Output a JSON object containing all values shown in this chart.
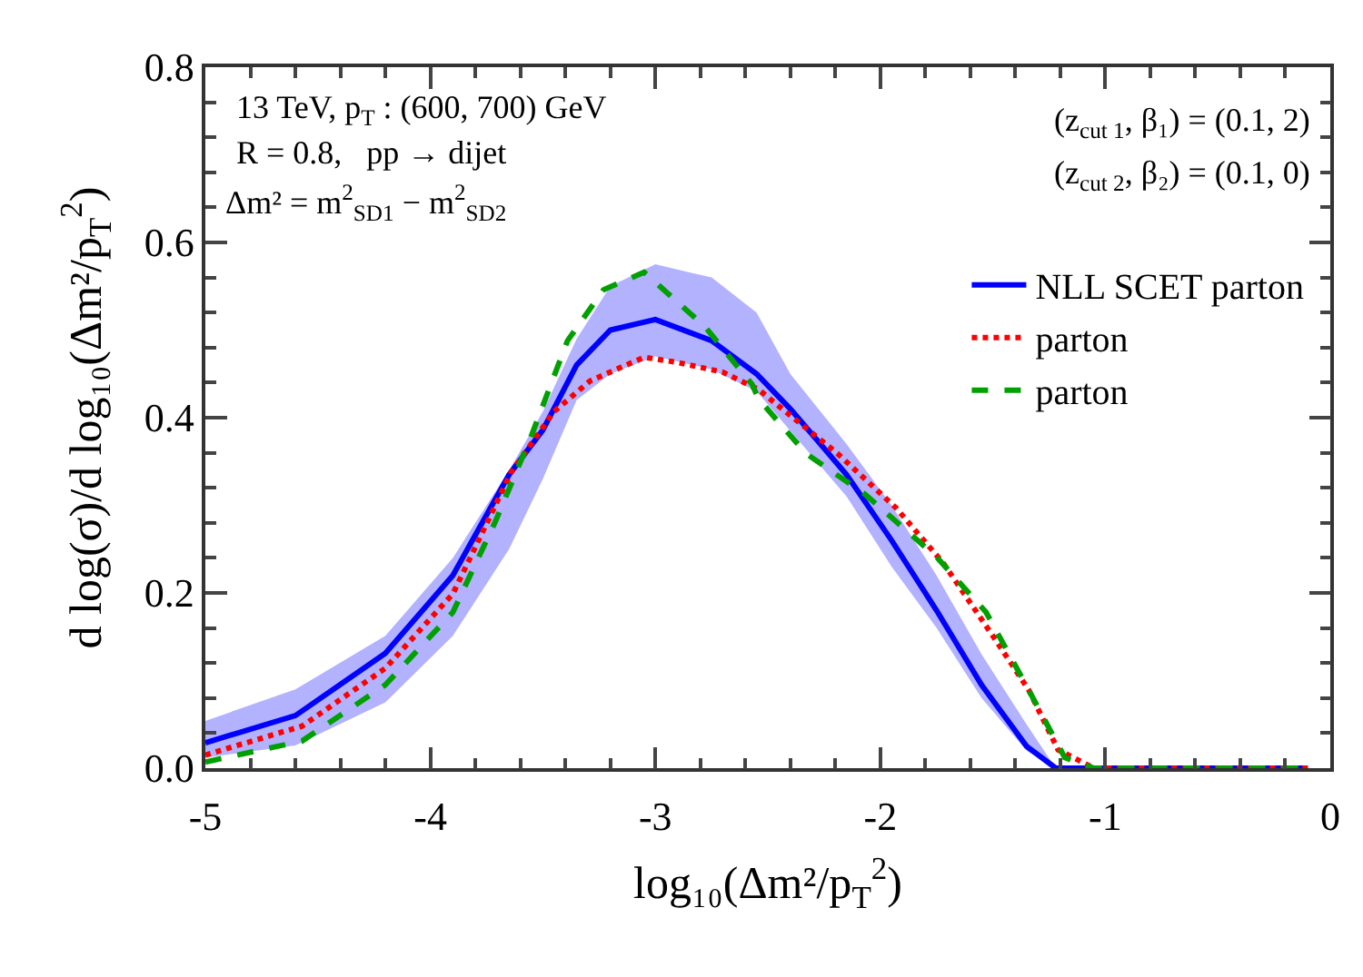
{
  "chart_data": {
    "type": "line",
    "xlabel": "log₁₀(Δm²/p$_{T}$$^{2}$)",
    "ylabel": "d log(σ)/d log₁₀(Δm²/p$_{T}$$^{2}$)",
    "annotations": [
      "13 TeV, p$_{T}$ : (600, 700) GeV",
      "R = 0.8,   pp → dijet",
      "Δm² = m$^{2}$$_{SD1}$ − m$^{2}$$_{SD2}$",
      "(z$_{cut 1}$, β₁) = (0.1, 2)",
      "(z$_{cut 2}$, β₂) = (0.1, 0)"
    ],
    "xlim": [
      -5,
      0
    ],
    "xticks": [
      -5,
      {
        "value": -4.8,
        "label": null
      },
      {
        "value": -4.6,
        "label": null
      },
      {
        "value": -4.4,
        "label": null
      },
      {
        "value": -4.2,
        "label": null
      },
      -4,
      {
        "value": -3.8,
        "label": null
      },
      {
        "value": -3.6,
        "label": null
      },
      {
        "value": -3.4,
        "label": null
      },
      {
        "value": -3.2,
        "label": null
      },
      -3,
      {
        "value": -2.8,
        "label": null
      },
      {
        "value": -2.6,
        "label": null
      },
      {
        "value": -2.4,
        "label": null
      },
      {
        "value": -2.2,
        "label": null
      },
      -2,
      {
        "value": -1.8,
        "label": null
      },
      {
        "value": -1.6,
        "label": null
      },
      {
        "value": -1.4,
        "label": null
      },
      {
        "value": -1.2,
        "label": null
      },
      -1,
      {
        "value": -0.8,
        "label": null
      },
      {
        "value": -0.6,
        "label": null
      },
      {
        "value": -0.4,
        "label": null
      },
      {
        "value": -0.2,
        "label": null
      },
      0
    ],
    "ylim": [
      0,
      0.8
    ],
    "yticks": [
      {
        "value": 0,
        "label": "0.0"
      },
      {
        "value": 0.04,
        "label": null
      },
      {
        "value": 0.08,
        "label": null
      },
      {
        "value": 0.12,
        "label": null
      },
      {
        "value": 0.16,
        "label": null
      },
      0.2,
      {
        "value": 0.24,
        "label": null
      },
      {
        "value": 0.28,
        "label": null
      },
      {
        "value": 0.32,
        "label": null
      },
      {
        "value": 0.36,
        "label": null
      },
      0.4,
      {
        "value": 0.44,
        "label": null
      },
      {
        "value": 0.48,
        "label": null
      },
      {
        "value": 0.52,
        "label": null
      },
      {
        "value": 0.56,
        "label": null
      },
      0.6,
      {
        "value": 0.64,
        "label": null
      },
      {
        "value": 0.68,
        "label": null
      },
      {
        "value": 0.72,
        "label": null
      },
      {
        "value": 0.76,
        "label": null
      },
      0.8
    ],
    "legend": "top right",
    "marker": "none",
    "series": [
      {
        "name": "NLL SCET parton",
        "color": "#0000ff",
        "line_style": "solid",
        "x": [
          -5,
          -4.6,
          -4.2,
          -3.9,
          -3.65,
          -3.5,
          -3.35,
          -3.2,
          -3.0,
          -2.75,
          -2.55,
          -2.4,
          -2.15,
          -1.95,
          -1.75,
          -1.55,
          -1.35,
          -1.22,
          -0.1
        ],
        "values": [
          0.029,
          0.06,
          0.131,
          0.22,
          0.335,
          0.386,
          0.46,
          0.5,
          0.512,
          0.488,
          0.45,
          0.41,
          0.335,
          0.26,
          0.18,
          0.095,
          0.025,
          0,
          0
        ],
        "upper": [
          0.054,
          0.09,
          0.151,
          0.24,
          0.34,
          0.407,
          0.49,
          0.55,
          0.575,
          0.56,
          0.52,
          0.45,
          0.37,
          0.3,
          0.22,
          0.13,
          0.05,
          0,
          0
        ],
        "lower": [
          0.012,
          0.026,
          0.075,
          0.151,
          0.25,
          0.33,
          0.42,
          0.45,
          0.47,
          0.455,
          0.43,
          0.385,
          0.31,
          0.23,
          0.16,
          0.08,
          0.02,
          0,
          0
        ]
      },
      {
        "name": "parton",
        "color": "#ff0000",
        "line_style": "dotted",
        "x": [
          -5,
          -4.57,
          -4.2,
          -3.9,
          -3.64,
          -3.45,
          -3.29,
          -3.05,
          -2.9,
          -2.7,
          -2.54,
          -2.46,
          -2.19,
          -1.93,
          -1.72,
          -1.5,
          -1.34,
          -1.21,
          -1.05,
          -0.1
        ],
        "values": [
          0.015,
          0.048,
          0.114,
          0.199,
          0.338,
          0.407,
          0.442,
          0.469,
          0.463,
          0.452,
          0.432,
          0.415,
          0.359,
          0.297,
          0.234,
          0.151,
          0.089,
          0.021,
          0,
          0
        ]
      },
      {
        "name": "parton",
        "color": "#00a000",
        "line_style": "dashed",
        "x": [
          -5,
          -4.57,
          -4.2,
          -3.9,
          -3.71,
          -3.55,
          -3.39,
          -3.23,
          -3.05,
          -2.78,
          -2.57,
          -2.54,
          -2.33,
          -2.07,
          -1.75,
          -1.53,
          -1.34,
          -1.18,
          -1.05,
          -0.1
        ],
        "values": [
          0.007,
          0.031,
          0.095,
          0.178,
          0.282,
          0.38,
          0.488,
          0.546,
          0.566,
          0.504,
          0.438,
          0.421,
          0.359,
          0.313,
          0.241,
          0.178,
          0.089,
          0.012,
          0,
          0
        ]
      }
    ]
  }
}
